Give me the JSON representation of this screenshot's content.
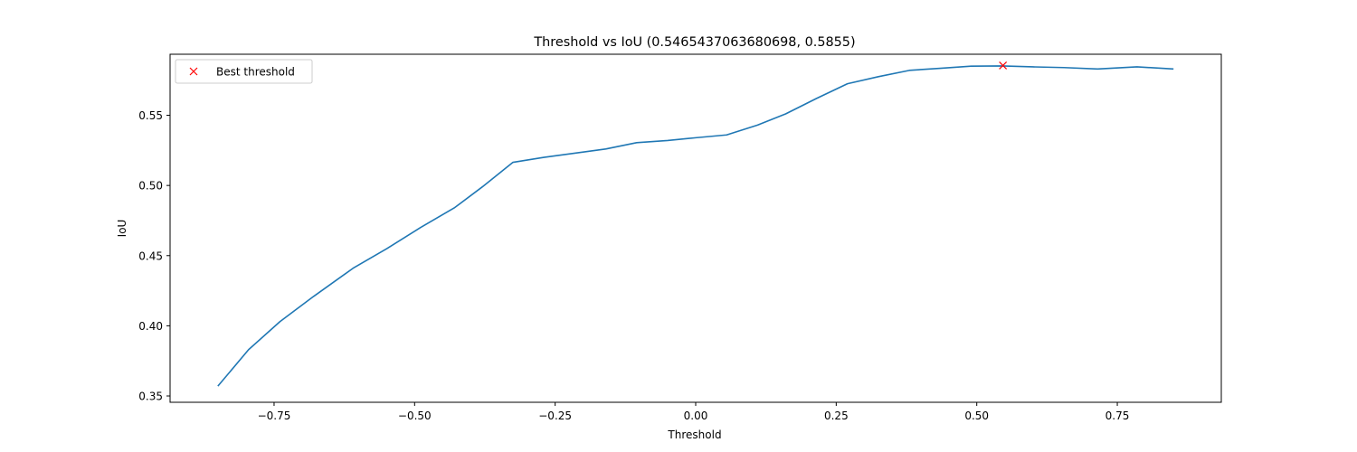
{
  "chart_data": {
    "type": "line",
    "title": "Threshold vs IoU (0.5465437063680698, 0.5855)",
    "xlabel": "Threshold",
    "ylabel": "IoU",
    "xlim": [
      -0.935,
      0.935
    ],
    "ylim": [
      0.3455,
      0.5935
    ],
    "xticks": [
      -0.75,
      -0.5,
      -0.25,
      0.0,
      0.25,
      0.5,
      0.75
    ],
    "xtick_labels": [
      "−0.75",
      "−0.50",
      "−0.25",
      "0.00",
      "0.25",
      "0.50",
      "0.75"
    ],
    "yticks": [
      0.35,
      0.4,
      0.45,
      0.5,
      0.55
    ],
    "ytick_labels": [
      "0.35",
      "0.40",
      "0.45",
      "0.50",
      "0.55"
    ],
    "grid": false,
    "legend": "top-left",
    "series": [
      {
        "name": "",
        "color": "#1f77b4",
        "x": [
          -0.85,
          -0.7953,
          -0.7395,
          -0.6795,
          -0.6095,
          -0.5495,
          -0.4895,
          -0.4295,
          -0.3795,
          -0.325,
          -0.27,
          -0.215,
          -0.16,
          -0.105,
          -0.05,
          0.0,
          0.055,
          0.11,
          0.16,
          0.215,
          0.27,
          0.325,
          0.38,
          0.435,
          0.49,
          0.545,
          0.6,
          0.655,
          0.715,
          0.785,
          0.85
        ],
        "y": [
          0.357,
          0.383,
          0.403,
          0.421,
          0.441,
          0.455,
          0.47,
          0.484,
          0.499,
          0.5165,
          0.52,
          0.523,
          0.526,
          0.5305,
          0.532,
          0.534,
          0.536,
          0.543,
          0.551,
          0.562,
          0.5725,
          0.5775,
          0.582,
          0.5835,
          0.585,
          0.5852,
          0.5845,
          0.584,
          0.583,
          0.5845,
          0.583
        ]
      },
      {
        "name": "Best threshold",
        "color": "#ff0000",
        "marker": "x",
        "x": [
          0.5465437063680698
        ],
        "y": [
          0.5855
        ]
      }
    ]
  }
}
